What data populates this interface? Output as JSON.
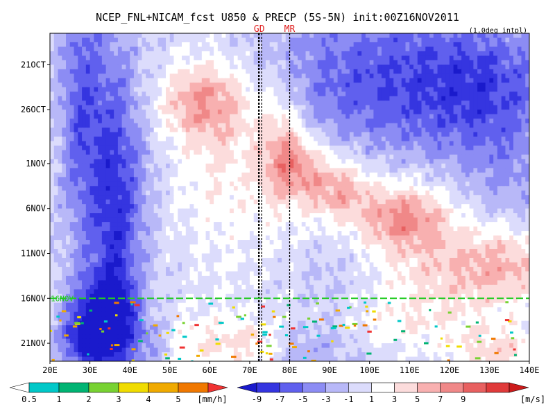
{
  "chart_data": {
    "type": "heatmap",
    "title": "NCEP_FNL+NICAM_fcst U850 & PRECP (5S-5N) init:00Z16NOV2011",
    "subtitle": "(1.0deg intpl)",
    "x_ticks": [
      "20E",
      "30E",
      "40E",
      "50E",
      "60E",
      "70E",
      "80E",
      "90E",
      "100E",
      "110E",
      "120E",
      "130E",
      "140E"
    ],
    "x_tick_values": [
      20,
      30,
      40,
      50,
      60,
      70,
      80,
      90,
      100,
      110,
      120,
      130,
      140
    ],
    "xlim": [
      20,
      140
    ],
    "y_ticks": [
      "21OCT",
      "26OCT",
      "1NOV",
      "6NOV",
      "11NOV",
      "16NOV",
      "21NOV"
    ],
    "y_tick_days": [
      0,
      5,
      11,
      16,
      21,
      26,
      31
    ],
    "ylim_days": [
      -3.5,
      33.0
    ],
    "markers": [
      {
        "label": "GD",
        "lon": 72.4
      },
      {
        "label": "MR",
        "lon": 80.0
      }
    ],
    "marker_band_lon": [
      72.2,
      73.0
    ],
    "forecast_start": "16NOV",
    "forecast_start_day": 26,
    "forecast_line_color": "#22cc22",
    "marker_label_color": "#e02020",
    "u850_colorbar": {
      "title": "[m/s]",
      "ticks": [
        "-9",
        "-7",
        "-5",
        "-3",
        "-1",
        "1",
        "3",
        "5",
        "7",
        "9"
      ],
      "colors": [
        "#1a1acc",
        "#3535e0",
        "#6060ee",
        "#8c8cf4",
        "#b8b8f8",
        "#dcdcfc",
        "#ffffff",
        "#fcdcdc",
        "#f8b0b0",
        "#f08888",
        "#e86060",
        "#e03a3a",
        "#cc1a1a"
      ]
    },
    "precip_colorbar": {
      "title": "[mm/h]",
      "ticks": [
        "0.5",
        "1",
        "2",
        "3",
        "4",
        "5"
      ],
      "colors": [
        "#ffffff",
        "#00c8c8",
        "#00b473",
        "#78d232",
        "#f0dc00",
        "#f0aa00",
        "#f07800",
        "#f03232"
      ]
    },
    "u850_features": [
      {
        "lon": 28,
        "day": 5,
        "slon": 4,
        "sday": 12,
        "amp": -6
      },
      {
        "lon": 36,
        "day": 20,
        "slon": 4,
        "sday": 14,
        "amp": -6
      },
      {
        "lon": 33,
        "day": 28,
        "slon": 6,
        "sday": 3,
        "amp": -8
      },
      {
        "lon": 30,
        "day": 31,
        "slon": 5,
        "sday": 2,
        "amp": -7
      },
      {
        "lon": 40,
        "day": 12,
        "slon": 6,
        "sday": 10,
        "amp": -3
      },
      {
        "lon": 58,
        "day": 4,
        "slon": 8,
        "sday": 3,
        "amp": 6
      },
      {
        "lon": 64,
        "day": 10,
        "slon": 10,
        "sday": 8,
        "amp": 3
      },
      {
        "lon": 78,
        "day": 9,
        "slon": 4,
        "sday": 5,
        "amp": 4
      },
      {
        "lon": 82,
        "day": 11,
        "slon": 5,
        "sday": 2.5,
        "amp": 5
      },
      {
        "lon": 92,
        "day": 14,
        "slon": 6,
        "sday": 2.5,
        "amp": 6
      },
      {
        "lon": 107,
        "day": 17,
        "slon": 7,
        "sday": 2.5,
        "amp": 6
      },
      {
        "lon": 115,
        "day": 19,
        "slon": 8,
        "sday": 4,
        "amp": 3
      },
      {
        "lon": 133,
        "day": 22,
        "slon": 9,
        "sday": 3,
        "amp": 5
      },
      {
        "lon": 120,
        "day": 25,
        "slon": 15,
        "sday": 3,
        "amp": 2
      },
      {
        "lon": 60,
        "day": 31,
        "slon": 10,
        "sday": 2.5,
        "amp": 3
      },
      {
        "lon": 72,
        "day": 31,
        "slon": 5,
        "sday": 1.5,
        "amp": 2
      },
      {
        "lon": 110,
        "day": 29,
        "slon": 10,
        "sday": 2,
        "amp": 2
      },
      {
        "lon": 132,
        "day": 32,
        "slon": 8,
        "sday": 2,
        "amp": 4
      },
      {
        "lon": 105,
        "day": -1,
        "slon": 25,
        "sday": 5,
        "amp": -5
      },
      {
        "lon": 130,
        "day": 2,
        "slon": 12,
        "sday": 4,
        "amp": -4
      },
      {
        "lon": 128,
        "day": 8,
        "slon": 14,
        "sday": 4,
        "amp": -3
      },
      {
        "lon": 100,
        "day": 5,
        "slon": 15,
        "sday": 4,
        "amp": -3
      },
      {
        "lon": 135,
        "day": 14,
        "slon": 8,
        "sday": 4,
        "amp": -2
      },
      {
        "lon": 90,
        "day": 24,
        "slon": 6,
        "sday": 3,
        "amp": -1.5
      },
      {
        "lon": 85,
        "day": 32,
        "slon": 8,
        "sday": 2,
        "amp": -2.5
      },
      {
        "lon": 45,
        "day": 31,
        "slon": 4,
        "sday": 2,
        "amp": -3
      }
    ]
  }
}
